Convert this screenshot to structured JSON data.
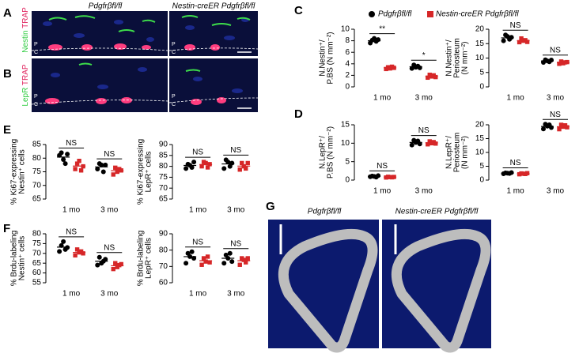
{
  "panel_labels": [
    "A",
    "B",
    "C",
    "D",
    "E",
    "F",
    "G"
  ],
  "micrographs": {
    "headers": [
      "Pdgfrβfl/fl",
      "Nestin-creER Pdgfrβfl/fl"
    ],
    "rows": [
      {
        "stain": "Nestin",
        "counterstain": "TRAP"
      },
      {
        "stain": "LepR",
        "counterstain": "TRAP"
      }
    ],
    "region_labels": [
      "P",
      "C"
    ]
  },
  "micro_ct": {
    "headers": [
      "Pdgfrβfl/fl",
      "Nestin-creER Pdgfrβfl/fl"
    ]
  },
  "legend": [
    {
      "name": "Pdgfrβfl/fl",
      "color": "#000000"
    },
    {
      "name": "Nestin-creER Pdgfrβfl/fl",
      "color": "#d62728"
    }
  ],
  "chart_data": [
    {
      "type": "dot",
      "ylabel": [
        "N.Nestin⁺/",
        "P.BS (N mm⁻²)"
      ],
      "categories": [
        "1 mo",
        "3 mo"
      ],
      "ylim": [
        0,
        10
      ],
      "yticks": [
        0,
        2,
        4,
        6,
        8,
        10
      ],
      "significance": [
        "**",
        "*"
      ],
      "series": [
        {
          "color": "#000000",
          "values": [
            [
              7.6,
              8.1,
              8.4,
              7.9,
              8.2
            ],
            [
              3.2,
              3.8,
              3.4,
              3.6,
              3.3
            ]
          ],
          "means": [
            8.0,
            3.5
          ]
        },
        {
          "color": "#d62728",
          "values": [
            [
              3.1,
              3.4,
              3.2,
              3.5,
              3.3
            ],
            [
              1.6,
              2.1,
              1.8,
              2.0,
              1.7
            ]
          ],
          "means": [
            3.3,
            1.8
          ]
        }
      ]
    },
    {
      "type": "dot",
      "ylabel": [
        "N.Nestin⁺/",
        "Periosteum",
        "(N mm⁻²)"
      ],
      "categories": [
        "1 mo",
        "3 mo"
      ],
      "ylim": [
        0,
        20
      ],
      "yticks": [
        0,
        5,
        10,
        15,
        20
      ],
      "significance": [
        "NS",
        "NS"
      ],
      "series": [
        {
          "color": "#000000",
          "values": [
            [
              16,
              18,
              17.5,
              16.5,
              17.2
            ],
            [
              8.5,
              9.4,
              9,
              8.7,
              9.3
            ]
          ],
          "means": [
            17,
            9
          ]
        },
        {
          "color": "#d62728",
          "values": [
            [
              15.5,
              16.8,
              16,
              16.2,
              15.6
            ],
            [
              8,
              8.8,
              8.2,
              8.5,
              8.6
            ]
          ],
          "means": [
            16,
            8.4
          ]
        }
      ]
    },
    {
      "type": "dot",
      "ylabel": [
        "N.LepR⁺/",
        "P.BS (N mm⁻²)"
      ],
      "categories": [
        "1 mo",
        "3 mo"
      ],
      "ylim": [
        0,
        15
      ],
      "yticks": [
        0,
        5,
        10,
        15
      ],
      "significance": [
        "NS",
        "NS"
      ],
      "series": [
        {
          "color": "#000000",
          "values": [
            [
              0.9,
              1.1,
              1,
              0.8,
              1.2
            ],
            [
              9.5,
              10.8,
              10.2,
              10.6,
              9.8
            ]
          ],
          "means": [
            1,
            10.2
          ]
        },
        {
          "color": "#d62728",
          "values": [
            [
              0.7,
              0.9,
              0.8,
              0.75,
              0.85
            ],
            [
              9.7,
              10.5,
              10,
              10.3,
              9.9
            ]
          ],
          "means": [
            0.8,
            10.1
          ]
        }
      ]
    },
    {
      "type": "dot",
      "ylabel": [
        "N.LepR⁺/",
        "Periosteum",
        "(N mm⁻²)"
      ],
      "categories": [
        "1 mo",
        "3 mo"
      ],
      "ylim": [
        0,
        20
      ],
      "yticks": [
        0,
        5,
        10,
        15,
        20
      ],
      "significance": [
        "NS",
        "NS"
      ],
      "series": [
        {
          "color": "#000000",
          "values": [
            [
              2.3,
              2.6,
              2.5,
              2.4,
              2.7
            ],
            [
              18.5,
              20.2,
              19.5,
              20,
              19
            ]
          ],
          "means": [
            2.5,
            19.4
          ]
        },
        {
          "color": "#d62728",
          "values": [
            [
              2.1,
              2.4,
              2.3,
              2.2,
              2.5
            ],
            [
              18.4,
              20,
              19.3,
              19.8,
              19.1
            ]
          ],
          "means": [
            2.3,
            19.3
          ]
        }
      ]
    },
    {
      "type": "dot",
      "ylabel": [
        "% Ki67-expressing",
        "Nestin⁺ cells"
      ],
      "categories": [
        "1 mo",
        "3 mo"
      ],
      "ylim": [
        65,
        85
      ],
      "yticks": [
        65,
        70,
        75,
        80,
        85
      ],
      "significance": [
        "NS",
        "NS"
      ],
      "series": [
        {
          "color": "#000000",
          "values": [
            [
              81,
              82,
              79.5,
              78,
              81.5
            ],
            [
              76,
              78,
              77.5,
              75,
              77.5
            ]
          ],
          "means": [
            80.4,
            76.8
          ]
        },
        {
          "color": "#d62728",
          "values": [
            [
              76,
              78,
              79,
              75.5,
              77
            ],
            [
              74,
              76.5,
              75,
              76,
              75.5
            ]
          ],
          "means": [
            77.1,
            75.4
          ]
        }
      ]
    },
    {
      "type": "dot",
      "ylabel": [
        "% Ki67-expressing",
        "LepR⁺ cells"
      ],
      "categories": [
        "1 mo",
        "3 mo"
      ],
      "ylim": [
        65,
        90
      ],
      "yticks": [
        65,
        70,
        75,
        80,
        85,
        90
      ],
      "significance": [
        "NS",
        "NS"
      ],
      "series": [
        {
          "color": "#000000",
          "values": [
            [
              79,
              81,
              80.5,
              79.5,
              82
            ],
            [
              79,
              83,
              82,
              80,
              81.5
            ]
          ],
          "means": [
            80.4,
            81.1
          ]
        },
        {
          "color": "#d62728",
          "values": [
            [
              80,
              82,
              81.5,
              79.5,
              81
            ],
            [
              78.5,
              81.5,
              80,
              79,
              81.5
            ]
          ],
          "means": [
            80.8,
            80.1
          ]
        }
      ]
    },
    {
      "type": "dot",
      "ylabel": [
        "% Brdu-labeling",
        "Nestin⁺ cells"
      ],
      "categories": [
        "1 mo",
        "3 mo"
      ],
      "ylim": [
        55,
        80
      ],
      "yticks": [
        55,
        60,
        65,
        70,
        75,
        80
      ],
      "significance": [
        "NS",
        "NS"
      ],
      "series": [
        {
          "color": "#000000",
          "values": [
            [
              71,
              74,
              76,
              72,
              73
            ],
            [
              64,
              68,
              65,
              66,
              67
            ]
          ],
          "means": [
            73.2,
            66
          ]
        },
        {
          "color": "#d62728",
          "values": [
            [
              69,
              72,
              70.5,
              71,
              70
            ],
            [
              62,
              65,
              63,
              64,
              64.5
            ]
          ],
          "means": [
            70.5,
            63.7
          ]
        }
      ]
    },
    {
      "type": "dot",
      "ylabel": [
        "% Brdu-labeling",
        "LepR⁺ cells"
      ],
      "categories": [
        "1 mo",
        "3 mo"
      ],
      "ylim": [
        60,
        90
      ],
      "yticks": [
        60,
        70,
        80,
        90
      ],
      "significance": [
        "NS",
        "NS"
      ],
      "series": [
        {
          "color": "#000000",
          "values": [
            [
              72,
              78,
              76,
              79,
              75
            ],
            [
              72,
              77,
              75,
              78,
              73
            ]
          ],
          "means": [
            76,
            75
          ]
        },
        {
          "color": "#d62728",
          "values": [
            [
              71,
              75,
              73,
              76,
              72.5
            ],
            [
              71,
              75,
              74,
              72.5,
              75
            ]
          ],
          "means": [
            73.5,
            73.5
          ]
        }
      ]
    }
  ]
}
